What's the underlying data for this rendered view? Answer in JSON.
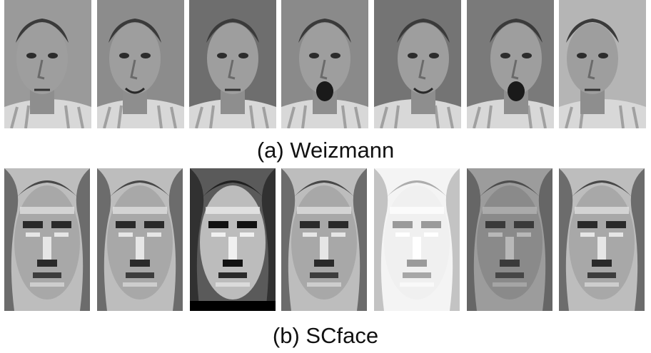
{
  "figure": {
    "panels": [
      {
        "id": "a",
        "caption": "(a) Weizmann",
        "faces": [
          {
            "pose": "three-quarter-right",
            "expression": "neutral"
          },
          {
            "pose": "three-quarter-right",
            "expression": "smile"
          },
          {
            "pose": "frontal",
            "expression": "neutral"
          },
          {
            "pose": "frontal",
            "expression": "yawn"
          },
          {
            "pose": "three-quarter-left",
            "expression": "smile"
          },
          {
            "pose": "three-quarter-left",
            "expression": "yawn"
          },
          {
            "pose": "profile-right",
            "expression": "neutral"
          }
        ]
      },
      {
        "id": "b",
        "caption": "(b) SCface",
        "faces": [
          {
            "style": "edge-enhanced"
          },
          {
            "style": "edge-enhanced"
          },
          {
            "style": "high-contrast"
          },
          {
            "style": "edge-enhanced"
          },
          {
            "style": "washed-out"
          },
          {
            "style": "blurred"
          },
          {
            "style": "edge-enhanced"
          }
        ]
      }
    ]
  }
}
